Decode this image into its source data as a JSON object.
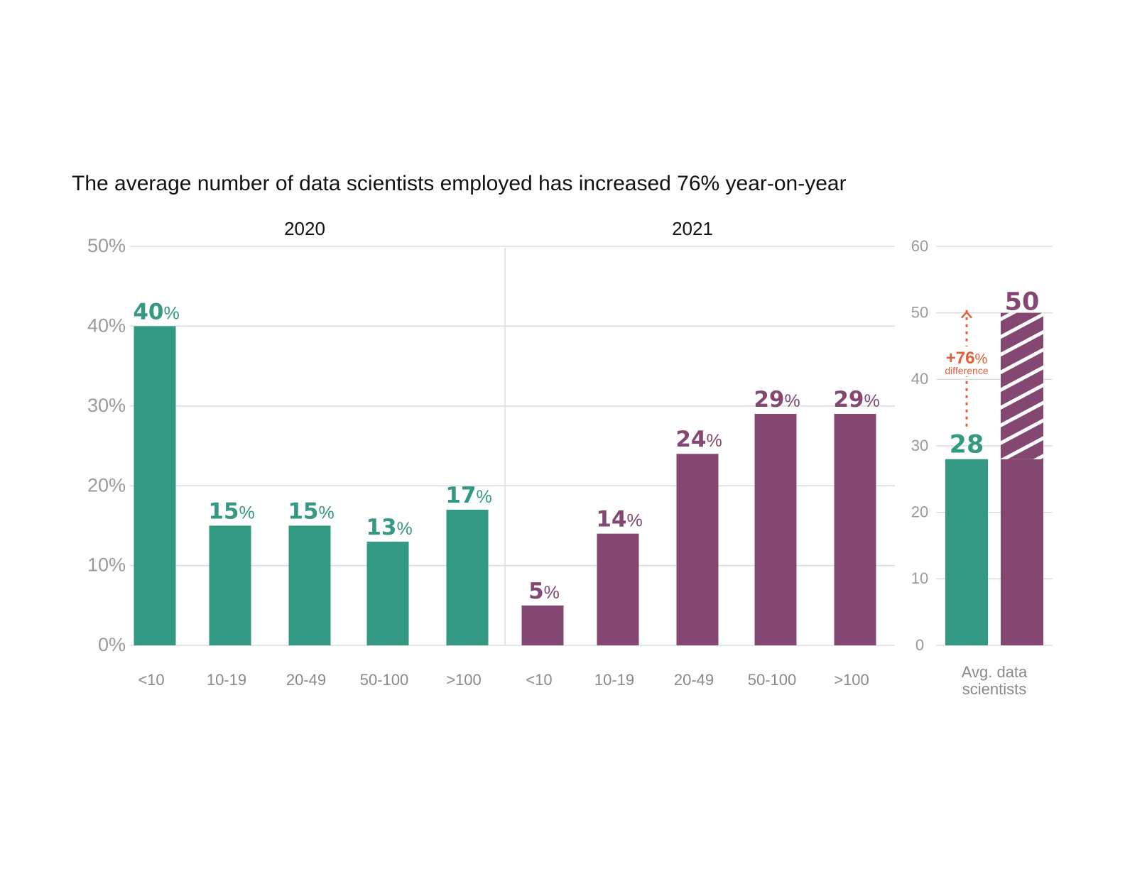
{
  "colors": {
    "y2020": "#339982",
    "y2021": "#844771",
    "grid": "#d5dde3",
    "axis_text": "#9a9a9a",
    "difference": "#e0603a"
  },
  "chart_data": [
    {
      "type": "bar",
      "title": "The average number of data scientists employed has increased 76% year-on-year",
      "ylim": [
        0,
        50
      ],
      "yticks": [
        "0%",
        "10%",
        "20%",
        "30%",
        "40%",
        "50%"
      ],
      "grid": true,
      "groups": [
        {
          "name": "2020",
          "color": "#339982",
          "categories": [
            "<10",
            "10-19",
            "20-49",
            "50-100",
            ">100"
          ],
          "values": [
            40,
            15,
            15,
            13,
            17
          ],
          "labels": [
            "40",
            "15",
            "15",
            "13",
            "17"
          ],
          "unit": "%"
        },
        {
          "name": "2021",
          "color": "#844771",
          "categories": [
            "<10",
            "10-19",
            "20-49",
            "50-100",
            ">100"
          ],
          "values": [
            5,
            14,
            24,
            29,
            29
          ],
          "labels": [
            "5",
            "14",
            "24",
            "29",
            "29"
          ],
          "unit": "%"
        }
      ]
    },
    {
      "type": "bar",
      "categories": [
        "Avg. data",
        "scientists"
      ],
      "xlabel_lines": [
        "Avg. data",
        "scientists"
      ],
      "ylim": [
        0,
        60
      ],
      "yticks": [
        "0",
        "10",
        "20",
        "30",
        "40",
        "50",
        "60"
      ],
      "grid": true,
      "values": [
        28,
        50
      ],
      "labels": [
        "28",
        "50"
      ],
      "annotation": {
        "value": "+76",
        "unit": "%",
        "text": "difference"
      }
    }
  ]
}
